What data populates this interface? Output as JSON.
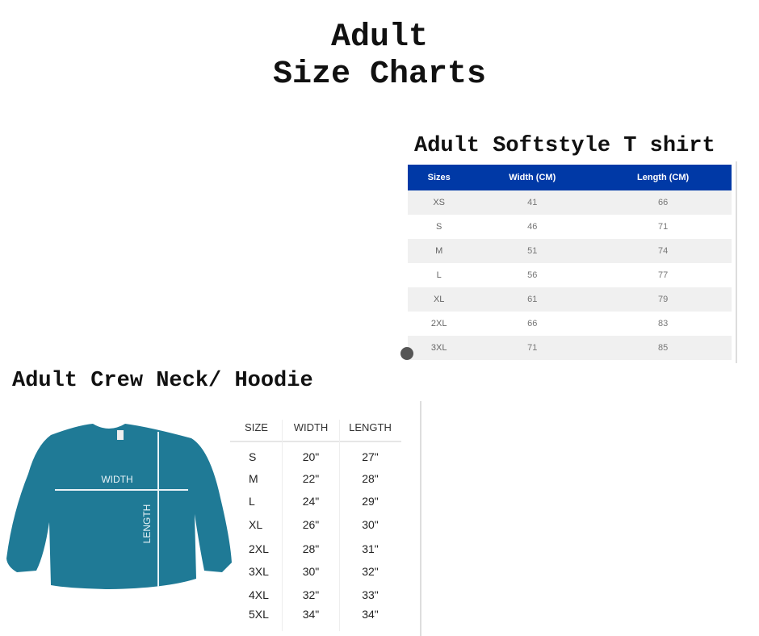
{
  "title": {
    "line1": "Adult",
    "line2": "Size Charts"
  },
  "softstyle": {
    "heading": "Adult Softstyle T shirt",
    "columns": [
      "Sizes",
      "Width (CM)",
      "Length (CM)"
    ],
    "rows": [
      [
        "XS",
        "41",
        "66"
      ],
      [
        "S",
        "46",
        "71"
      ],
      [
        "M",
        "51",
        "74"
      ],
      [
        "L",
        "56",
        "77"
      ],
      [
        "XL",
        "61",
        "79"
      ],
      [
        "2XL",
        "66",
        "83"
      ],
      [
        "3XL",
        "71",
        "85"
      ]
    ],
    "header_color": "#0039a6"
  },
  "crewneck": {
    "heading": "Adult Crew Neck/ Hoodie",
    "diagram": {
      "width_label": "WIDTH",
      "length_label": "LENGTH",
      "garment_color": "#1f7a96"
    },
    "columns": [
      "SIZE",
      "WIDTH",
      "LENGTH"
    ],
    "rows": [
      [
        "S",
        "20\"",
        "27\""
      ],
      [
        "M",
        "22\"",
        "28\""
      ],
      [
        "L",
        "24\"",
        "29\""
      ],
      [
        "XL",
        "26\"",
        "30\""
      ],
      [
        "2XL",
        "28\"",
        "31\""
      ],
      [
        "3XL",
        "30\"",
        "32\""
      ],
      [
        "4XL",
        "32\"",
        "33\""
      ],
      [
        "5XL",
        "34\"",
        "34\""
      ]
    ]
  }
}
